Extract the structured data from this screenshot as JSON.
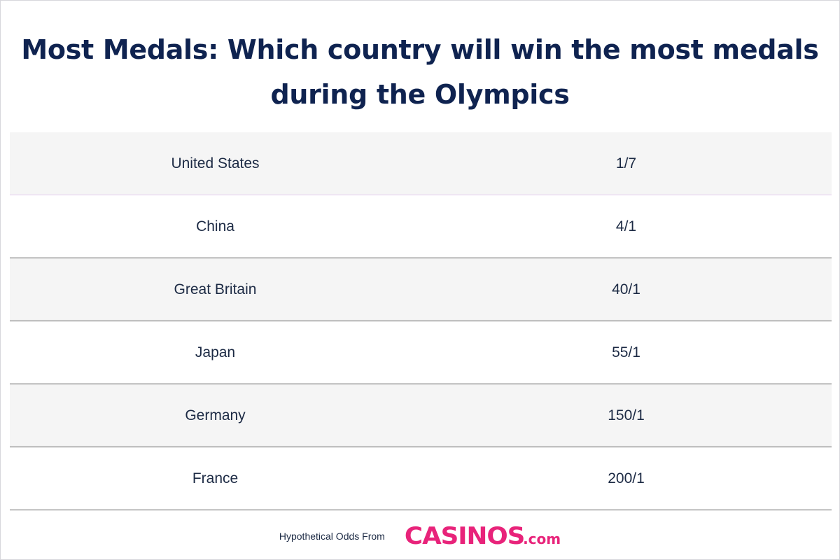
{
  "title": "Most Medals: Which country will win the most medals during the Olympics",
  "rows": [
    {
      "country": "United States",
      "odds": "1/7"
    },
    {
      "country": "China",
      "odds": "4/1"
    },
    {
      "country": "Great Britain",
      "odds": "40/1"
    },
    {
      "country": "Japan",
      "odds": "55/1"
    },
    {
      "country": "Germany",
      "odds": "150/1"
    },
    {
      "country": "France",
      "odds": "200/1"
    }
  ],
  "footer": {
    "text": "Hypothetical Odds From",
    "logo_main": "CASINOS",
    "logo_suffix": ".com"
  },
  "colors": {
    "title": "#0f2350",
    "text": "#1c2a44",
    "logo": "#e8237a",
    "row_shade": "#f5f5f5"
  }
}
